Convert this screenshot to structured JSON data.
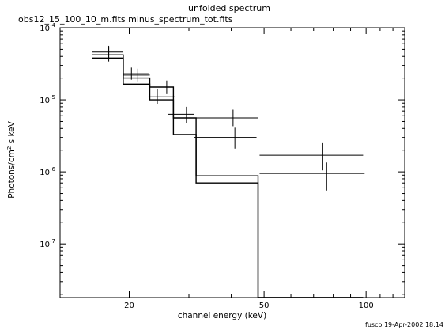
{
  "chart_data": {
    "type": "line",
    "title": "unfolded spectrum",
    "subtitle": "obs12_15_100_10_m.fits minus_spectrum_tot.fits",
    "xlabel": "channel energy (keV)",
    "ylabel_main": "Photons/cm",
    "ylabel_sup": "2",
    "ylabel_tail": " s keV",
    "footer": "fusco 19-Apr-2002 18:14",
    "x_scale": "log",
    "y_scale": "log",
    "xlim": [
      12.5,
      130
    ],
    "ylim": [
      1.8e-08,
      0.0001
    ],
    "x_ticks": [
      {
        "value": 20,
        "label": "20"
      },
      {
        "value": 50,
        "label": "50"
      },
      {
        "value": 100,
        "label": "100"
      }
    ],
    "y_ticks": [
      {
        "value": 1e-07,
        "base": "10",
        "exp": "-7"
      },
      {
        "value": 1e-06,
        "base": "10",
        "exp": "-6"
      },
      {
        "value": 1e-05,
        "base": "10",
        "exp": "-5"
      },
      {
        "value": 0.0001,
        "base": "10",
        "exp": "-4"
      }
    ],
    "data_points": [
      {
        "x": 17.4,
        "xlo": 15.5,
        "xhi": 19.2,
        "y": 4.2e-05,
        "ylo": 3.4e-05,
        "yhi": 5.3e-05
      },
      {
        "x": 20.3,
        "xlo": 19.2,
        "xhi": 22.8,
        "y": 2.3e-05,
        "ylo": 1.9e-05,
        "yhi": 2.8e-05
      },
      {
        "x": 24.2,
        "xlo": 22.8,
        "xhi": 27.2,
        "y": 1.1e-05,
        "ylo": 8.8e-06,
        "yhi": 1.4e-05
      },
      {
        "x": 29.5,
        "xlo": 26.0,
        "xhi": 31.0,
        "y": 6.3e-06,
        "ylo": 4.8e-06,
        "yhi": 8e-06
      },
      {
        "x": 40.5,
        "xlo": 31.5,
        "xhi": 48.0,
        "y": 5.6e-06,
        "ylo": 4.3e-06,
        "yhi": 7.3e-06
      },
      {
        "x": 41.0,
        "xlo": 31.0,
        "xhi": 47.5,
        "y": 3e-06,
        "ylo": 2.1e-06,
        "yhi": 4.1e-06
      },
      {
        "x": 74.5,
        "xlo": 48.5,
        "xhi": 98.0,
        "y": 1.7e-06,
        "ylo": 1.05e-06,
        "yhi": 2.5e-06
      },
      {
        "x": 76.5,
        "xlo": 48.5,
        "xhi": 99.0,
        "y": 9.5e-07,
        "ylo": 5.5e-07,
        "yhi": 1.35e-06
      },
      {
        "x": 17.4,
        "xlo": 15.5,
        "xhi": 19.2,
        "y": 4.6e-05,
        "ylo": 3.8e-05,
        "yhi": 5.6e-05
      },
      {
        "x": 21.2,
        "xlo": 19.2,
        "xhi": 23.0,
        "y": 2.2e-05,
        "ylo": 1.8e-05,
        "yhi": 2.7e-05
      },
      {
        "x": 25.8,
        "xlo": 23.0,
        "xhi": 27.0,
        "y": 1.5e-05,
        "ylo": 1.2e-05,
        "yhi": 1.85e-05
      }
    ],
    "series": [
      {
        "steps": [
          {
            "x0": 15.5,
            "x1": 19.2,
            "y": 3.8e-05
          },
          {
            "x0": 19.2,
            "x1": 23.0,
            "y": 1.65e-05
          },
          {
            "x0": 23.0,
            "x1": 27.0,
            "y": 1e-05
          },
          {
            "x0": 27.0,
            "x1": 31.5,
            "y": 5.6e-06
          },
          {
            "x0": 31.5,
            "x1": 48.0,
            "y": 7e-07
          },
          {
            "x0": 48.0,
            "x1": 98.0,
            "y": 1.8e-08
          }
        ]
      },
      {
        "steps": [
          {
            "x0": 15.5,
            "x1": 19.2,
            "y": 4.2e-05
          },
          {
            "x0": 19.2,
            "x1": 23.0,
            "y": 2e-05
          },
          {
            "x0": 23.0,
            "x1": 27.0,
            "y": 1.5e-05
          },
          {
            "x0": 27.0,
            "x1": 31.5,
            "y": 3.3e-06
          },
          {
            "x0": 31.5,
            "x1": 48.0,
            "y": 8.8e-07
          },
          {
            "x0": 48.0,
            "x1": 98.0,
            "y": 1.8e-08
          }
        ]
      }
    ],
    "grid": false,
    "legend": "none"
  }
}
